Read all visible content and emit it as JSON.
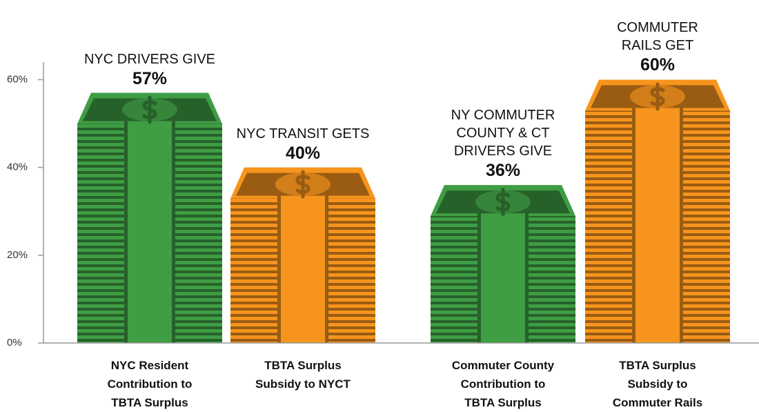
{
  "chart_data": {
    "type": "bar",
    "categories": [
      "NYC Resident\nContribution to\nTBTA Surplus",
      "TBTA Surplus\nSubsidy to NYCT",
      "Commuter County\nContribution to\nTBTA Surplus",
      "TBTA Surplus\nSubsidy to\nCommuter Rails"
    ],
    "values": [
      57,
      40,
      36,
      60
    ],
    "value_labels": [
      "57%",
      "40%",
      "36%",
      "60%"
    ],
    "annotations": [
      "NYC DRIVERS GIVE",
      "NYC TRANSIT GETS",
      "NY COMMUTER\nCOUNTY & CT\nDRIVERS  GIVE",
      "COMMUTER\nRAILS GET"
    ],
    "colors": [
      "#3f9d44",
      "#f7941d",
      "#3f9d44",
      "#f7941d"
    ],
    "ylim": [
      0,
      64
    ],
    "yticks": [
      {
        "value": 0,
        "label": "0%"
      },
      {
        "value": 20,
        "label": "20%"
      },
      {
        "value": 40,
        "label": "40%"
      },
      {
        "value": 60,
        "label": "60%"
      }
    ]
  }
}
